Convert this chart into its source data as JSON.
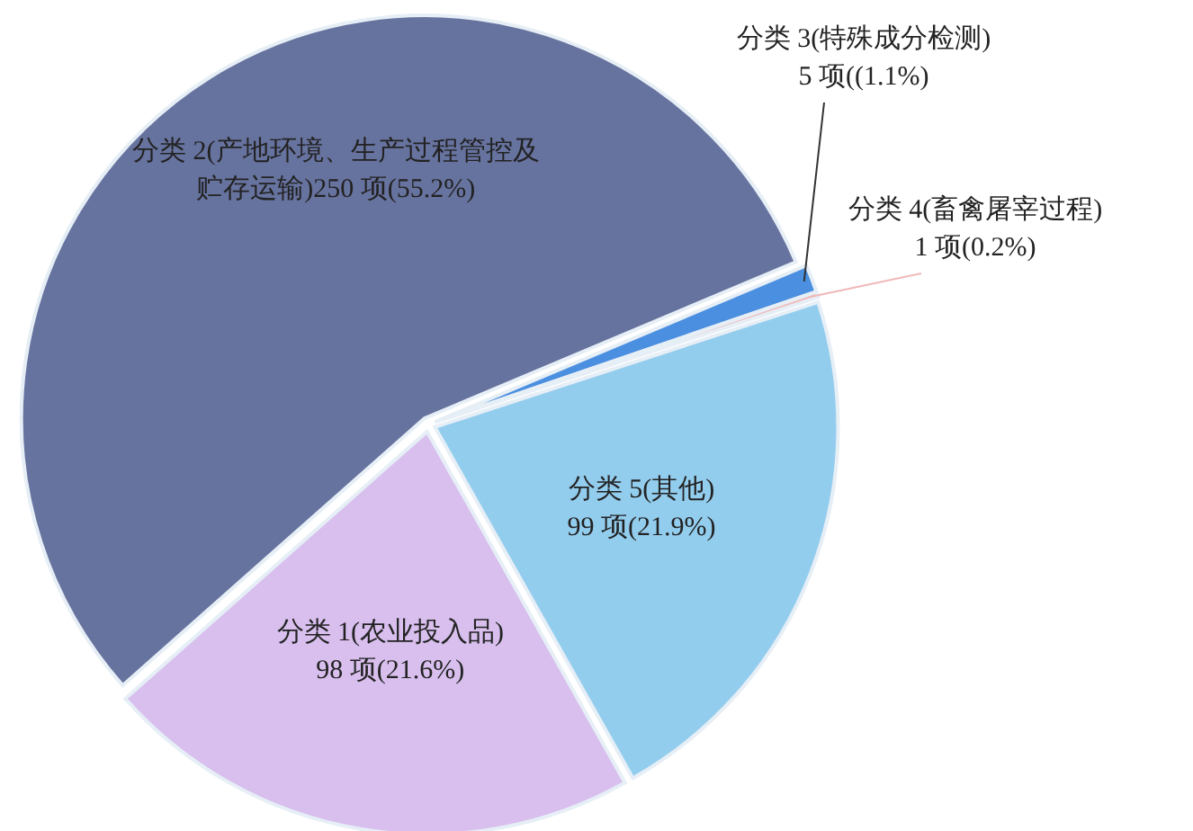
{
  "chart_data": {
    "type": "pie",
    "categories": [
      "分类 1(农业投入品)",
      "分类 2(产地环境、生产过程管控及贮存运输)",
      "分类 3(特殊成分检测)",
      "分类 4(畜禽屠宰过程)",
      "分类 5(其他)"
    ],
    "values": [
      98,
      250,
      5,
      1,
      99
    ],
    "value_labels": [
      "98 项(21.6%)",
      "250 项(55.2%)",
      "5 项((1.1%)",
      "1 项(0.2%)",
      "99 项(21.9%)"
    ],
    "colors": [
      "#d8bfee",
      "#67739f",
      "#4a8fe0",
      "#f0b8b8",
      "#93cdee"
    ]
  }
}
